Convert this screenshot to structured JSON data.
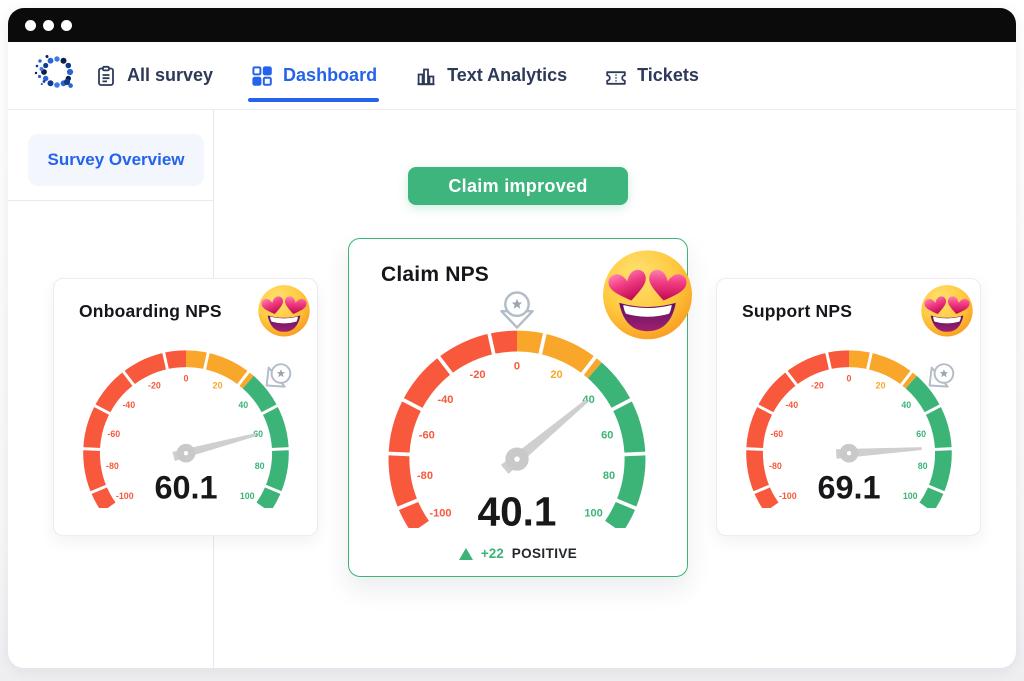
{
  "window": {
    "titlebar_dots": 3
  },
  "nav": {
    "items": [
      {
        "label": "All survey",
        "icon": "clipboard-icon",
        "active": false
      },
      {
        "label": "Dashboard",
        "icon": "grid-icon",
        "active": true
      },
      {
        "label": "Text Analytics",
        "icon": "bar-chart-icon",
        "active": false
      },
      {
        "label": "Tickets",
        "icon": "ticket-icon",
        "active": false
      }
    ]
  },
  "sidebar": {
    "items": [
      {
        "label": "Survey Overview",
        "active": true
      }
    ]
  },
  "banner": {
    "label": "Claim improved",
    "color": "#3db57d"
  },
  "colors": {
    "accent_blue": "#2563eb",
    "nav_text": "#2e3a59",
    "gauge_red": "#f8583c",
    "gauge_orange": "#f9a72b",
    "gauge_green": "#3cb478",
    "needle": "#cfcfcf",
    "banner_green": "#3db57d"
  },
  "chart_data": [
    {
      "type": "gauge",
      "title": "Onboarding NPS",
      "value": 60.1,
      "value_label": "60.1",
      "min": -100,
      "max": 100,
      "start_angle": 215,
      "sweep": 250,
      "segments": [
        {
          "from": -100,
          "to": 0,
          "color": "#f8583c"
        },
        {
          "from": 0,
          "to": 33,
          "color": "#f9a72b"
        },
        {
          "from": 33,
          "to": 100,
          "color": "#3cb478"
        }
      ],
      "tick_labels": [
        -100,
        -80,
        -60,
        -40,
        -20,
        0,
        20,
        40,
        60,
        80,
        100
      ],
      "marker_value": 40,
      "emoji": "heart-eyes-emoji",
      "highlighted": false
    },
    {
      "type": "gauge",
      "title": "Claim NPS",
      "value": 40.1,
      "value_label": "40.1",
      "min": -100,
      "max": 100,
      "start_angle": 215,
      "sweep": 250,
      "segments": [
        {
          "from": -100,
          "to": 0,
          "color": "#f8583c"
        },
        {
          "from": 0,
          "to": 33,
          "color": "#f9a72b"
        },
        {
          "from": 33,
          "to": 100,
          "color": "#3cb478"
        }
      ],
      "tick_labels": [
        -100,
        -80,
        -60,
        -40,
        -20,
        0,
        20,
        40,
        60,
        80,
        100
      ],
      "marker_value": 0,
      "emoji": "heart-eyes-emoji",
      "highlighted": true,
      "delta": {
        "direction": "up",
        "value": "+22",
        "label": "POSITIVE",
        "color": "#3cb478"
      }
    },
    {
      "type": "gauge",
      "title": "Support NPS",
      "value": 69.1,
      "value_label": "69.1",
      "min": -100,
      "max": 100,
      "start_angle": 215,
      "sweep": 250,
      "segments": [
        {
          "from": -100,
          "to": 0,
          "color": "#f8583c"
        },
        {
          "from": 0,
          "to": 33,
          "color": "#f9a72b"
        },
        {
          "from": 33,
          "to": 100,
          "color": "#3cb478"
        }
      ],
      "tick_labels": [
        -100,
        -80,
        -60,
        -40,
        -20,
        0,
        20,
        40,
        60,
        80,
        100
      ],
      "marker_value": 40,
      "emoji": "heart-eyes-emoji",
      "highlighted": false
    }
  ]
}
